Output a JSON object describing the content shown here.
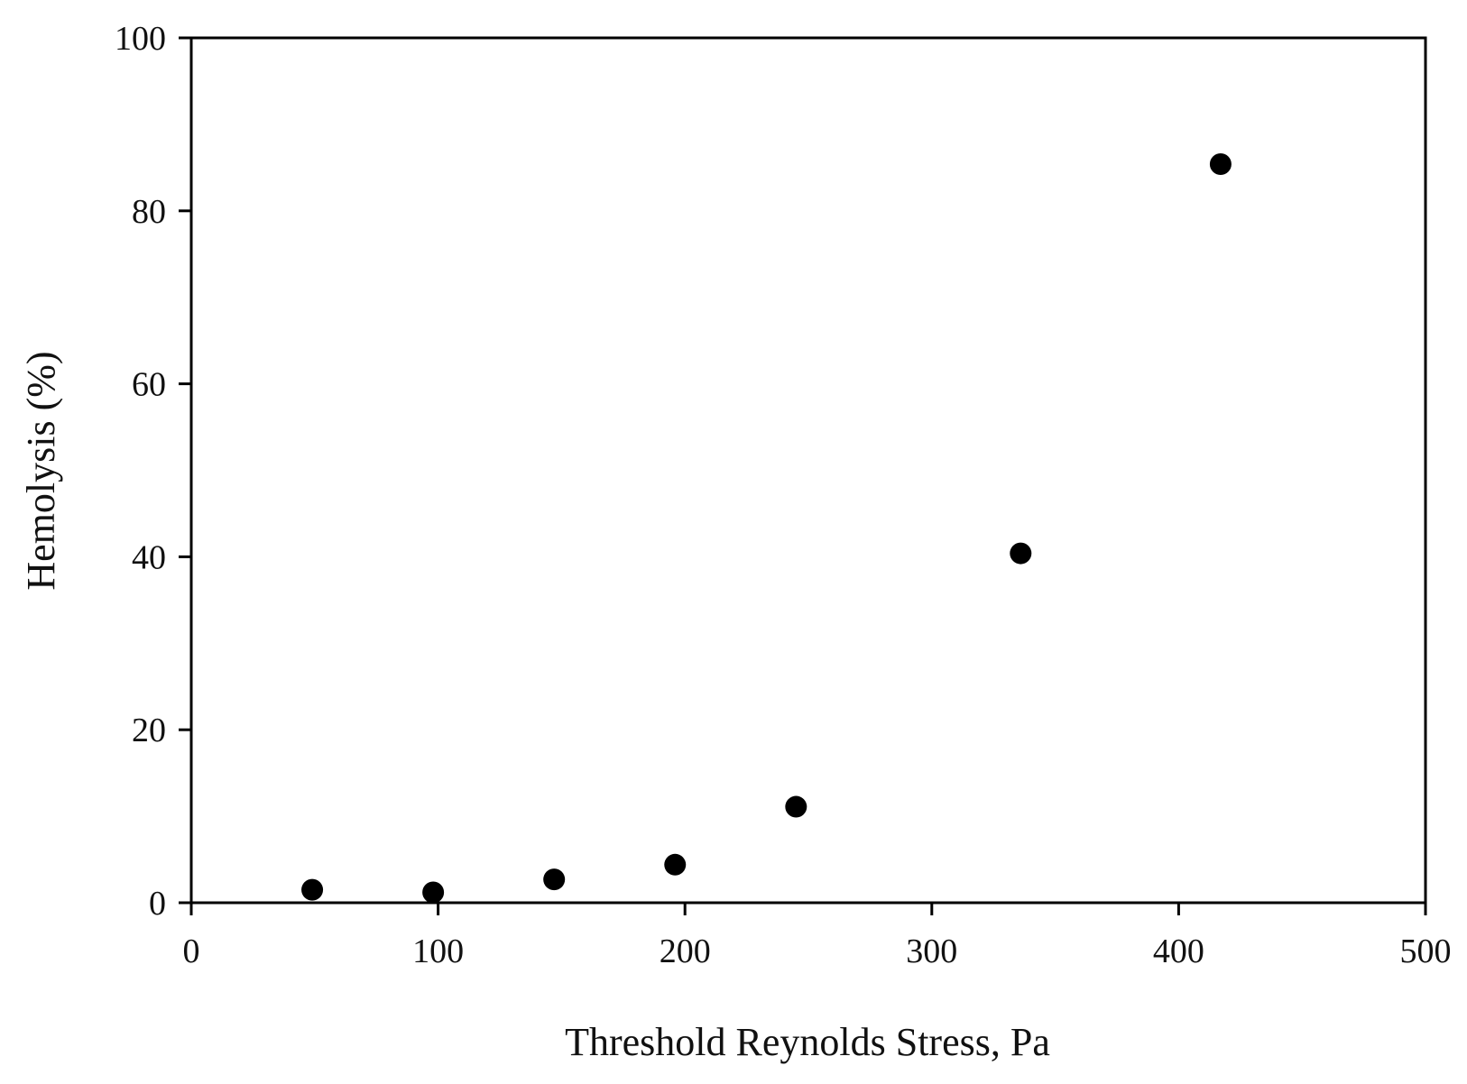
{
  "chart_data": {
    "type": "scatter",
    "title": "",
    "xlabel": "Threshold Reynolds Stress, Pa",
    "ylabel": "Hemolysis (%)",
    "xlim": [
      0,
      500
    ],
    "ylim": [
      0,
      100
    ],
    "xticks": [
      0,
      100,
      200,
      300,
      400,
      500
    ],
    "yticks": [
      0,
      20,
      40,
      60,
      80,
      100
    ],
    "xtick_labels": [
      "0",
      "100",
      "200",
      "300",
      "400",
      "500"
    ],
    "ytick_labels": [
      "0",
      "20",
      "40",
      "60",
      "80",
      "100"
    ],
    "grid": false,
    "legend": "none",
    "marker_color": "#000000",
    "series": [
      {
        "points": [
          {
            "x": 49,
            "y": 1.5
          },
          {
            "x": 98,
            "y": 1.2
          },
          {
            "x": 147,
            "y": 2.7
          },
          {
            "x": 196,
            "y": 4.4
          },
          {
            "x": 245,
            "y": 11.1
          },
          {
            "x": 336,
            "y": 40.4
          },
          {
            "x": 417,
            "y": 85.4
          }
        ]
      }
    ]
  }
}
